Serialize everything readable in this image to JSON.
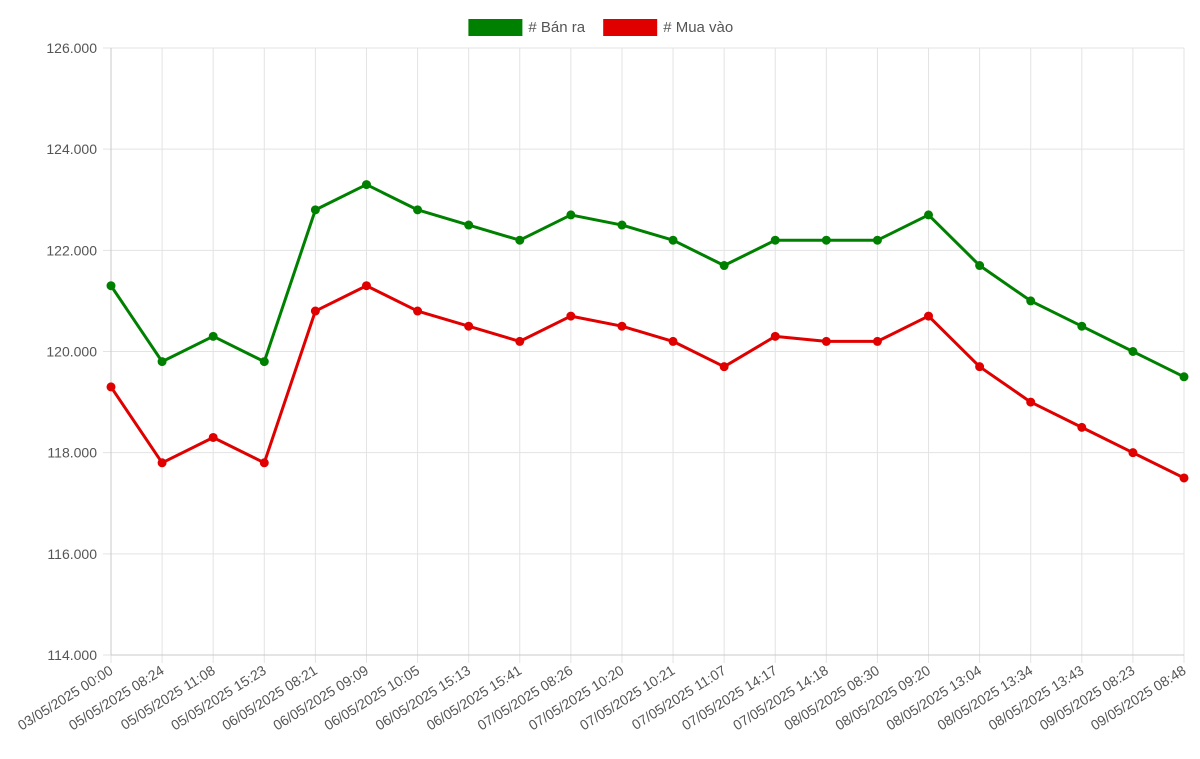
{
  "chart_data": {
    "type": "line",
    "categories": [
      "03/05/2025 00:00",
      "05/05/2025 08:24",
      "05/05/2025 11:08",
      "05/05/2025 15:23",
      "06/05/2025 08:21",
      "06/05/2025 09:09",
      "06/05/2025 10:05",
      "06/05/2025 15:13",
      "06/05/2025 15:41",
      "07/05/2025 08:26",
      "07/05/2025 10:20",
      "07/05/2025 10:21",
      "07/05/2025 11:07",
      "07/05/2025 14:17",
      "07/05/2025 14:18",
      "08/05/2025 08:30",
      "08/05/2025 09:20",
      "08/05/2025 13:04",
      "08/05/2025 13:34",
      "08/05/2025 13:43",
      "09/05/2025 08:23",
      "09/05/2025 08:48"
    ],
    "series": [
      {
        "name": "# Bán ra",
        "color": "#008000",
        "values": [
          121300,
          119800,
          120300,
          119800,
          122800,
          123300,
          122800,
          122500,
          122200,
          122700,
          122500,
          122200,
          121700,
          122200,
          122200,
          122200,
          122700,
          121700,
          121000,
          120500,
          120000,
          119500
        ]
      },
      {
        "name": "# Mua vào",
        "color": "#e00000",
        "values": [
          119300,
          117800,
          118300,
          117800,
          120800,
          121300,
          120800,
          120500,
          120200,
          120700,
          120500,
          120200,
          119700,
          120300,
          120200,
          120200,
          120700,
          119700,
          119000,
          118500,
          118000,
          117500
        ]
      }
    ],
    "ylim": [
      114000,
      126000
    ],
    "yticks": [
      "114.000",
      "116.000",
      "118.000",
      "120.000",
      "122.000",
      "124.000",
      "126.000"
    ],
    "ytick_values": [
      114000,
      116000,
      118000,
      120000,
      122000,
      124000,
      126000
    ],
    "grid": true,
    "legend_position": "top-center",
    "title": "",
    "xlabel": "",
    "ylabel": ""
  }
}
